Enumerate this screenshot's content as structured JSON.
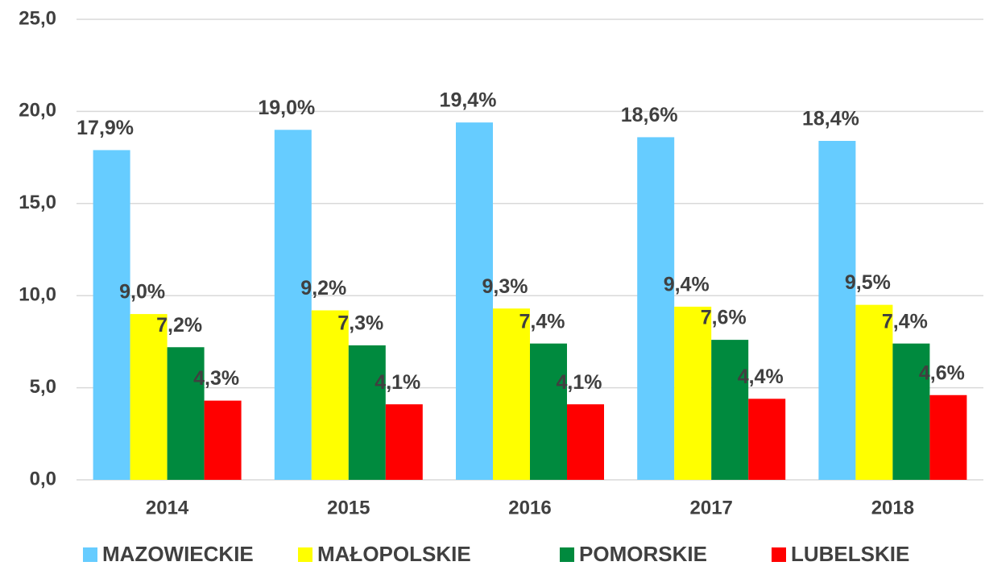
{
  "chart_data": {
    "type": "bar",
    "categories": [
      "2014",
      "2015",
      "2016",
      "2017",
      "2018"
    ],
    "series": [
      {
        "name": "MAZOWIECKIE",
        "color": "#66ccff",
        "values": [
          17.9,
          19.0,
          19.4,
          18.6,
          18.4
        ],
        "value_labels": [
          "17,9%",
          "19,0%",
          "19,4%",
          "18,6%",
          "18,4%"
        ]
      },
      {
        "name": "MAŁOPOLSKIE",
        "color": "#ffff00",
        "values": [
          9.0,
          9.2,
          9.3,
          9.4,
          9.5
        ],
        "value_labels": [
          "9,0%",
          "9,2%",
          "9,3%",
          "9,4%",
          "9,5%"
        ]
      },
      {
        "name": "POMORSKIE",
        "color": "#008a3e",
        "values": [
          7.2,
          7.3,
          7.4,
          7.6,
          7.4
        ],
        "value_labels": [
          "7,2%",
          "7,3%",
          "7,4%",
          "7,6%",
          "7,4%"
        ]
      },
      {
        "name": "LUBELSKIE",
        "color": "#ff0000",
        "values": [
          4.3,
          4.1,
          4.1,
          4.4,
          4.6
        ],
        "value_labels": [
          "4,3%",
          "4,1%",
          "4,1%",
          "4,4%",
          "4,6%"
        ]
      }
    ],
    "ylim": [
      0,
      25
    ],
    "yticks": [
      {
        "value": 0,
        "label": "0,0"
      },
      {
        "value": 5,
        "label": "5,0"
      },
      {
        "value": 10,
        "label": "10,0"
      },
      {
        "value": 15,
        "label": "15,0"
      },
      {
        "value": 20,
        "label": "20,0"
      },
      {
        "value": 25,
        "label": "25,0"
      }
    ],
    "grid": true,
    "legend": "bottom"
  }
}
